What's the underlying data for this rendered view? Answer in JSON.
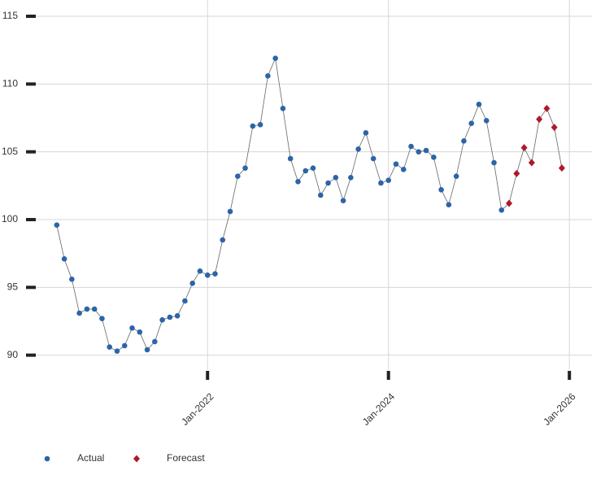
{
  "chart_data": {
    "type": "line",
    "x": [
      "2020-05",
      "2020-06",
      "2020-07",
      "2020-08",
      "2020-09",
      "2020-10",
      "2020-11",
      "2020-12",
      "2021-01",
      "2021-02",
      "2021-03",
      "2021-04",
      "2021-05",
      "2021-06",
      "2021-07",
      "2021-08",
      "2021-09",
      "2021-10",
      "2021-11",
      "2021-12",
      "2022-01",
      "2022-02",
      "2022-03",
      "2022-04",
      "2022-05",
      "2022-06",
      "2022-07",
      "2022-08",
      "2022-09",
      "2022-10",
      "2022-11",
      "2022-12",
      "2023-01",
      "2023-02",
      "2023-03",
      "2023-04",
      "2023-05",
      "2023-06",
      "2023-07",
      "2023-08",
      "2023-09",
      "2023-10",
      "2023-11",
      "2023-12",
      "2024-01",
      "2024-02",
      "2024-03",
      "2024-04",
      "2024-05",
      "2024-06",
      "2024-07",
      "2024-08",
      "2024-09",
      "2024-10",
      "2024-11",
      "2024-12",
      "2025-01",
      "2025-02",
      "2025-03",
      "2025-04",
      "2025-05",
      "2025-06",
      "2025-07",
      "2025-08",
      "2025-09",
      "2025-10",
      "2025-11",
      "2025-12"
    ],
    "series": [
      {
        "name": "Actual",
        "color": "#2b65a8",
        "marker": "circle",
        "values": [
          99.6,
          97.1,
          95.6,
          93.1,
          93.4,
          93.4,
          92.7,
          90.6,
          90.3,
          90.7,
          92.0,
          91.7,
          90.4,
          91.0,
          92.6,
          92.8,
          92.9,
          94.0,
          95.3,
          96.2,
          95.9,
          96.0,
          98.5,
          100.6,
          103.2,
          103.8,
          106.9,
          107.0,
          110.6,
          111.9,
          108.2,
          104.5,
          102.8,
          103.6,
          103.8,
          101.8,
          102.7,
          103.1,
          101.4,
          103.1,
          105.2,
          106.4,
          104.5,
          102.7,
          102.9,
          104.1,
          103.7,
          105.4,
          105.0,
          105.1,
          104.6,
          102.2,
          101.1,
          103.2,
          105.8,
          107.1,
          108.5,
          107.3,
          104.2,
          100.7,
          null,
          null,
          null,
          null,
          null,
          null,
          null,
          null
        ]
      },
      {
        "name": "Forecast",
        "color": "#b0182a",
        "marker": "diamond",
        "values": [
          null,
          null,
          null,
          null,
          null,
          null,
          null,
          null,
          null,
          null,
          null,
          null,
          null,
          null,
          null,
          null,
          null,
          null,
          null,
          null,
          null,
          null,
          null,
          null,
          null,
          null,
          null,
          null,
          null,
          null,
          null,
          null,
          null,
          null,
          null,
          null,
          null,
          null,
          null,
          null,
          null,
          null,
          null,
          null,
          null,
          null,
          null,
          null,
          null,
          null,
          null,
          null,
          null,
          null,
          null,
          null,
          null,
          null,
          null,
          null,
          101.2,
          103.4,
          105.3,
          104.2,
          107.4,
          108.2,
          106.8,
          103.8
        ]
      }
    ],
    "line_color": "#666666",
    "xlim": [
      "2020-02",
      "2026-04"
    ],
    "xticks": [
      {
        "value": "2022-01",
        "label": "Jan-2022"
      },
      {
        "value": "2024-01",
        "label": "Jan-2024"
      },
      {
        "value": "2026-01",
        "label": "Jan-2026"
      }
    ],
    "ylim": [
      88.9,
      116.2
    ],
    "yticks": [
      90,
      95,
      100,
      105,
      110,
      115
    ],
    "grid": true,
    "legend": "bottom-left"
  }
}
